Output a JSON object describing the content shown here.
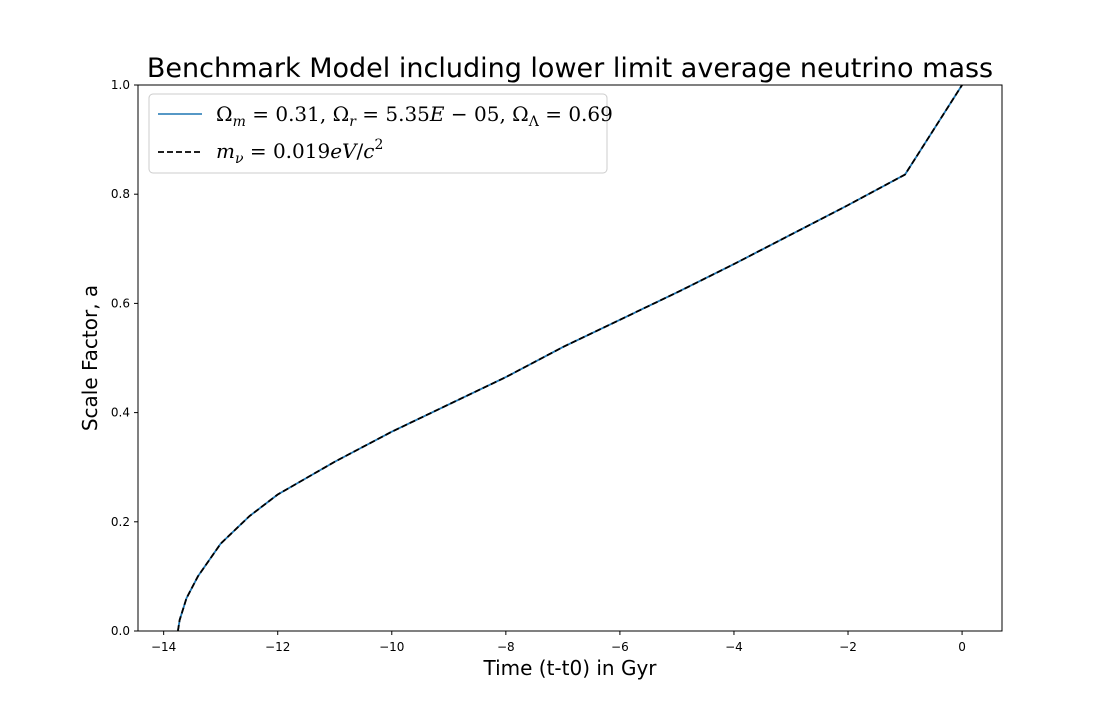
{
  "chart_data": {
    "type": "line",
    "title": "Benchmark Model including lower limit average neutrino mass",
    "xlabel": "Time (t-t0) in Gyr",
    "ylabel": "Scale Factor, a",
    "xlim": [
      -14.45,
      0.7
    ],
    "ylim": [
      0,
      1
    ],
    "x_ticks": [
      -14,
      -12,
      -10,
      -8,
      -6,
      -4,
      -2,
      0
    ],
    "x_tick_labels": [
      "−14",
      "−12",
      "−10",
      "−8",
      "−6",
      "−4",
      "−2",
      "0"
    ],
    "y_ticks": [
      0,
      0.2,
      0.4,
      0.6,
      0.8,
      1.0
    ],
    "y_tick_labels": [
      "0.0",
      "0.2",
      "0.4",
      "0.6",
      "0.8",
      "1.0"
    ],
    "grid": false,
    "legend_position": "top-left",
    "series": [
      {
        "name": "Ωm = 0.31, Ωr = 5.35E − 05, ΩΛ = 0.69",
        "color": "#1f77b4",
        "style": "solid",
        "x": [
          -13.75,
          -13.72,
          -13.6,
          -13.4,
          -13.0,
          -12.5,
          -12.0,
          -11.0,
          -10.0,
          -9.0,
          -8.0,
          -7.0,
          -6.0,
          -5.0,
          -4.0,
          -3.0,
          -2.0,
          -1.0,
          0.0
        ],
        "y": [
          0.0,
          0.02,
          0.06,
          0.1,
          0.16,
          0.21,
          0.25,
          0.31,
          0.365,
          0.415,
          0.465,
          0.52,
          0.57,
          0.62,
          0.672,
          0.726,
          0.78,
          0.836,
          1.0
        ]
      },
      {
        "name": "mν = 0.019eV/c²",
        "color": "#000000",
        "style": "dashed",
        "x": [
          -13.75,
          -13.72,
          -13.6,
          -13.4,
          -13.0,
          -12.5,
          -12.0,
          -11.0,
          -10.0,
          -9.0,
          -8.0,
          -7.0,
          -6.0,
          -5.0,
          -4.0,
          -3.0,
          -2.0,
          -1.0,
          0.0
        ],
        "y": [
          0.0,
          0.02,
          0.06,
          0.1,
          0.16,
          0.21,
          0.25,
          0.31,
          0.365,
          0.415,
          0.465,
          0.52,
          0.57,
          0.62,
          0.672,
          0.726,
          0.78,
          0.836,
          1.0
        ]
      }
    ]
  }
}
